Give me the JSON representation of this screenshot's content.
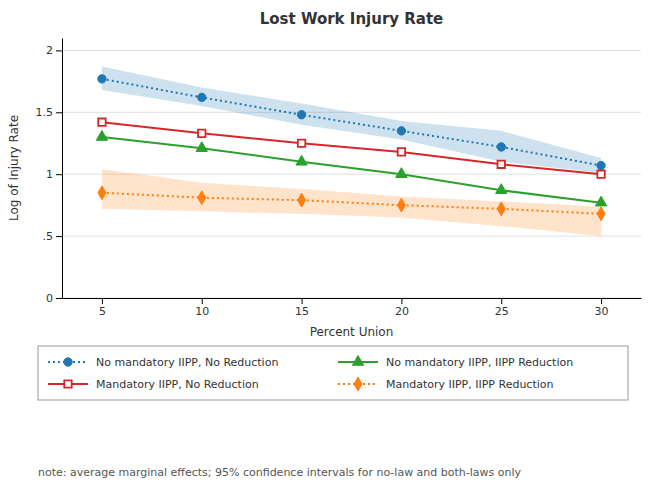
{
  "chart_data": {
    "type": "line",
    "title": "Lost Work Injury Rate",
    "x_label": "Percent Union",
    "y_label": "Log of Injury Rate",
    "x": [
      5,
      10,
      15,
      20,
      25,
      30
    ],
    "xlim": [
      3,
      32
    ],
    "xticks": [
      5,
      10,
      15,
      20,
      25,
      30
    ],
    "ylim": [
      0,
      2.1
    ],
    "yticks": [
      0,
      {
        "value": 0.5,
        "label": ".5"
      },
      1,
      1.5,
      2
    ],
    "grid": "y",
    "legend": "bottom",
    "series": [
      {
        "name": "No mandatory IIPP, No Reduction",
        "marker": "circle",
        "line_style": "dotted",
        "values": [
          1.77,
          1.62,
          1.48,
          1.35,
          1.22,
          1.07
        ],
        "ci_upper": [
          1.87,
          1.7,
          1.57,
          1.43,
          1.35,
          1.13
        ],
        "ci_lower": [
          1.68,
          1.55,
          1.4,
          1.28,
          1.1,
          1.01
        ]
      },
      {
        "name": "No mandatory IIPP, IIPP Reduction",
        "marker": "triangle",
        "line_style": "solid",
        "values": [
          1.3,
          1.21,
          1.1,
          1.0,
          0.87,
          0.77
        ]
      },
      {
        "name": "Mandatory IIPP, No Reduction",
        "marker": "square",
        "line_style": "solid",
        "values": [
          1.42,
          1.33,
          1.25,
          1.18,
          1.08,
          1.0
        ]
      },
      {
        "name": "Mandatory IIPP, IIPP Reduction",
        "marker": "diamond",
        "line_style": "dotted",
        "values": [
          0.85,
          0.81,
          0.79,
          0.75,
          0.72,
          0.68
        ],
        "ci_upper": [
          1.04,
          0.93,
          0.88,
          0.82,
          0.78,
          0.74
        ],
        "ci_lower": [
          0.72,
          0.7,
          0.68,
          0.65,
          0.58,
          0.5
        ]
      }
    ],
    "annotation": "note: average marginal effects; 95% confidence intervals for no-law and both-laws only"
  }
}
